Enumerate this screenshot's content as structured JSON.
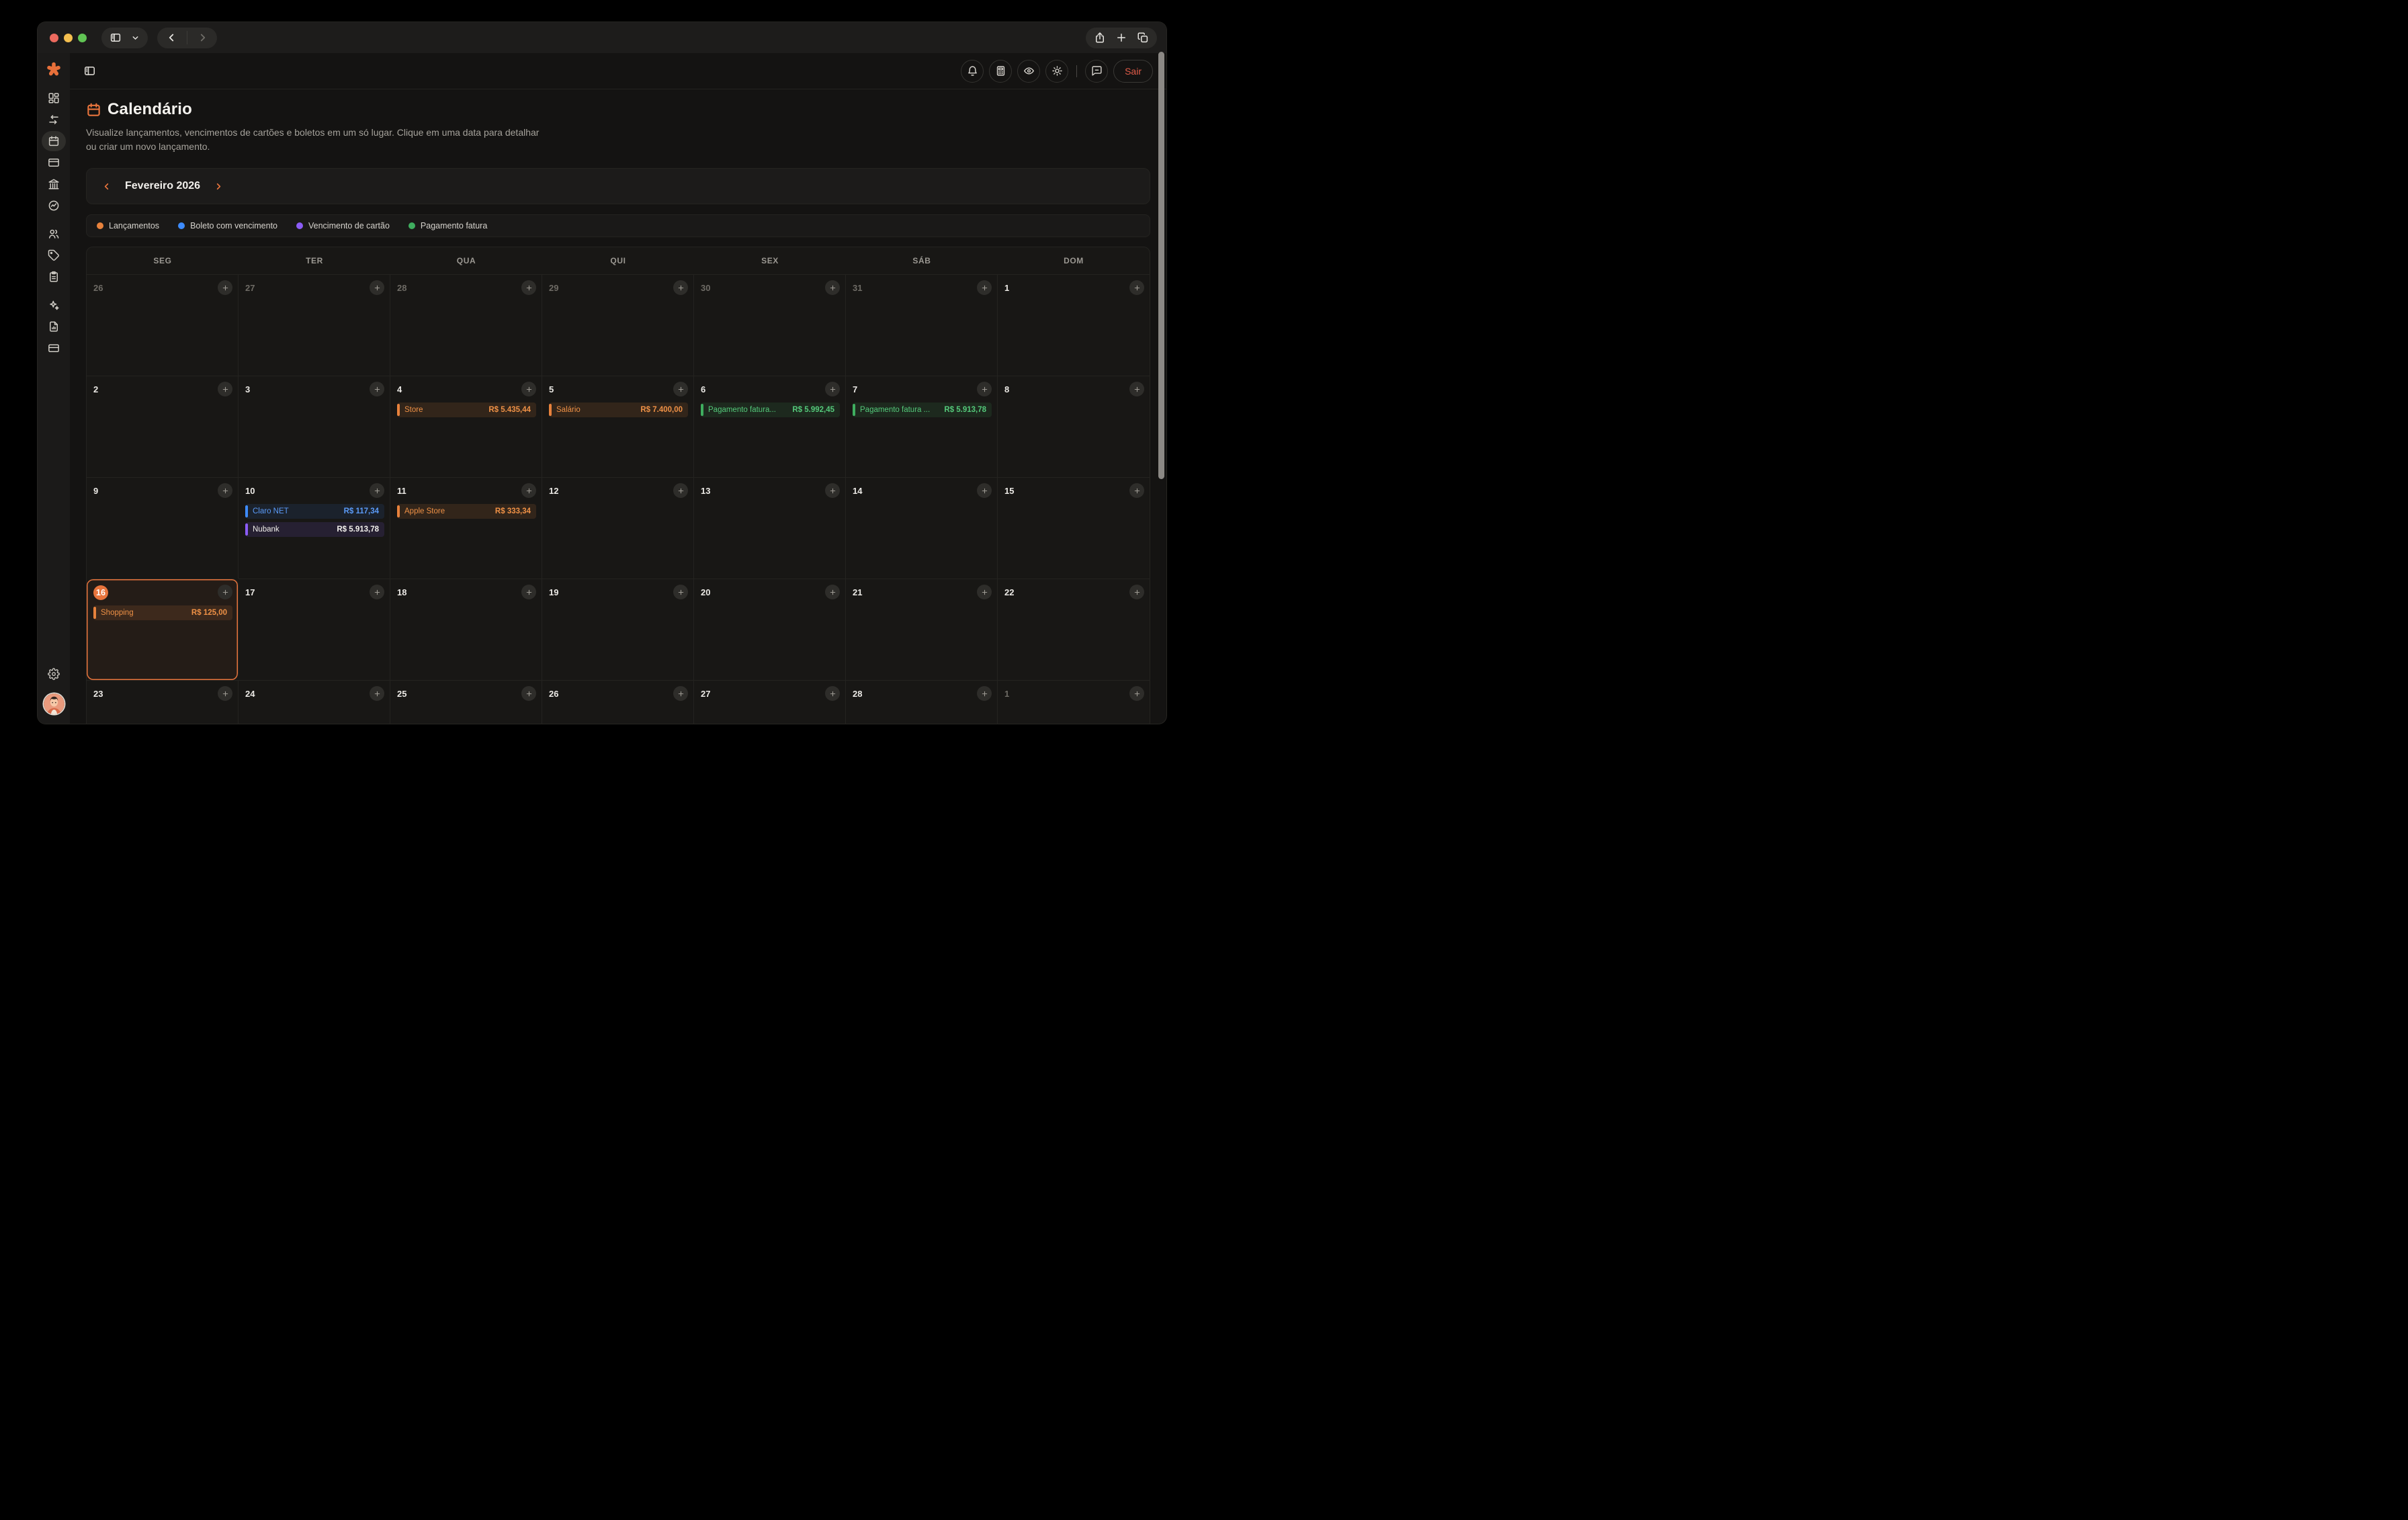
{
  "window": {
    "traffic_lights": [
      "close",
      "minimize",
      "zoom"
    ],
    "toolbar": {
      "sidebar_toggle": [
        "panel-icon",
        "chevron-down-icon"
      ],
      "nav": [
        "back-icon",
        "forward-icon"
      ],
      "actions": [
        "share-icon",
        "new-tab-icon",
        "tab-overview-icon"
      ]
    }
  },
  "sidebar": {
    "logo": "asterisk-logo",
    "active": "calendar-icon",
    "groups": [
      [
        "dashboard-icon",
        "transfers-icon",
        "calendar-icon",
        "credit-card-icon",
        "bank-icon",
        "goals-icon"
      ],
      [
        "users-icon",
        "tag-icon",
        "clipboard-icon"
      ],
      [
        "sparkles-icon",
        "report-icon",
        "wallet-icon"
      ]
    ],
    "bottom": [
      "settings-gear-icon"
    ],
    "avatar": "user-avatar"
  },
  "header": {
    "actions": [
      "bell-icon",
      "calculator-icon",
      "eye-icon",
      "sun-icon",
      "divider",
      "chat-icon"
    ],
    "logout_label": "Sair"
  },
  "page": {
    "title": "Calendário",
    "subtitle": "Visualize lançamentos, vencimentos de cartões e boletos em um só lugar. Clique em uma data para detalhar ou criar um novo lançamento."
  },
  "month_nav": {
    "label": "Fevereiro 2026"
  },
  "legend": [
    {
      "label": "Lançamentos",
      "color": "#e8823c"
    },
    {
      "label": "Boleto com vencimento",
      "color": "#3d8bfd"
    },
    {
      "label": "Vencimento de cartão",
      "color": "#8b5cf6"
    },
    {
      "label": "Pagamento fatura",
      "color": "#3fae5f"
    }
  ],
  "calendar": {
    "day_headers": [
      "SEG",
      "TER",
      "QUA",
      "QUI",
      "SEX",
      "SÁB",
      "DOM"
    ],
    "weeks": [
      [
        {
          "num": "26",
          "dim": true
        },
        {
          "num": "27",
          "dim": true
        },
        {
          "num": "28",
          "dim": true
        },
        {
          "num": "29",
          "dim": true
        },
        {
          "num": "30",
          "dim": true
        },
        {
          "num": "31",
          "dim": true
        },
        {
          "num": "1"
        }
      ],
      [
        {
          "num": "2"
        },
        {
          "num": "3"
        },
        {
          "num": "4",
          "events": [
            {
              "label": "Store",
              "value": "R$ 5.435,44",
              "type": "orange"
            }
          ]
        },
        {
          "num": "5",
          "events": [
            {
              "label": "Salário",
              "value": "R$ 7.400,00",
              "type": "orange"
            }
          ]
        },
        {
          "num": "6",
          "events": [
            {
              "label": "Pagamento fatura...",
              "value": "R$ 5.992,45",
              "type": "green"
            }
          ]
        },
        {
          "num": "7",
          "events": [
            {
              "label": "Pagamento fatura ...",
              "value": "R$ 5.913,78",
              "type": "green"
            }
          ]
        },
        {
          "num": "8"
        }
      ],
      [
        {
          "num": "9"
        },
        {
          "num": "10",
          "events": [
            {
              "label": "Claro NET",
              "value": "R$ 117,34",
              "type": "blue"
            },
            {
              "label": "Nubank",
              "value": "R$ 5.913,78",
              "type": "purple"
            }
          ]
        },
        {
          "num": "11",
          "events": [
            {
              "label": "Apple Store",
              "value": "R$ 333,34",
              "type": "orange"
            }
          ]
        },
        {
          "num": "12"
        },
        {
          "num": "13"
        },
        {
          "num": "14"
        },
        {
          "num": "15"
        }
      ],
      [
        {
          "num": "16",
          "today": true,
          "events": [
            {
              "label": "Shopping",
              "value": "R$ 125,00",
              "type": "orange"
            }
          ]
        },
        {
          "num": "17"
        },
        {
          "num": "18"
        },
        {
          "num": "19"
        },
        {
          "num": "20"
        },
        {
          "num": "21"
        },
        {
          "num": "22"
        }
      ],
      [
        {
          "num": "23"
        },
        {
          "num": "24"
        },
        {
          "num": "25"
        },
        {
          "num": "26"
        },
        {
          "num": "27"
        },
        {
          "num": "28"
        },
        {
          "num": "1",
          "dim": true
        }
      ]
    ]
  }
}
